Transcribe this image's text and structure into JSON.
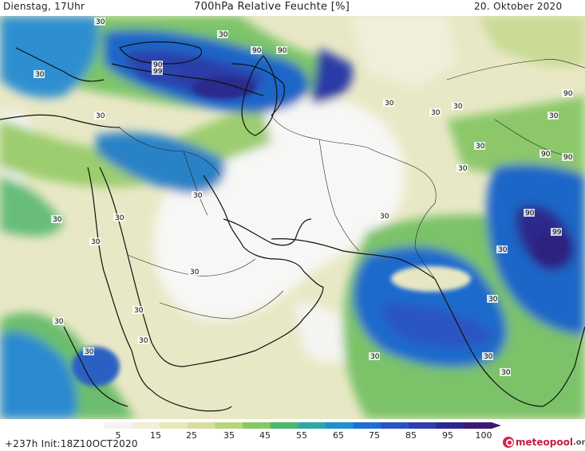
{
  "header": {
    "left": "Dienstag, 17Uhr",
    "title": "700hPa Relative Feuchte [%]",
    "right": "20. Oktober 2020"
  },
  "footer": {
    "run": "+237h Init:18Z10OCT2020",
    "brand_main": "meteopool",
    "brand_suffix": ".org"
  },
  "colorbar": {
    "ticks": [
      "5",
      "15",
      "25",
      "35",
      "45",
      "55",
      "65",
      "75",
      "85",
      "95",
      "100"
    ],
    "colors": [
      "#ffffff",
      "#f3f3f3",
      "#f1f0d8",
      "#e7e8b9",
      "#d7dea0",
      "#b6d67e",
      "#86c963",
      "#4cb86e",
      "#2ea7a6",
      "#1f8fd0",
      "#1b6fd4",
      "#2a53c2",
      "#2f3eaa",
      "#2c2690",
      "#3b1a6e"
    ]
  },
  "contour_labels": [
    "30",
    "90",
    "99"
  ],
  "colors": {
    "land_dry": "#ece9cf",
    "land_white": "#f6f6f3",
    "moist_mid": "#6fbf6a",
    "moist_high": "#1e6fd0",
    "moist_max": "#2a2d8f",
    "coast": "#111111"
  }
}
